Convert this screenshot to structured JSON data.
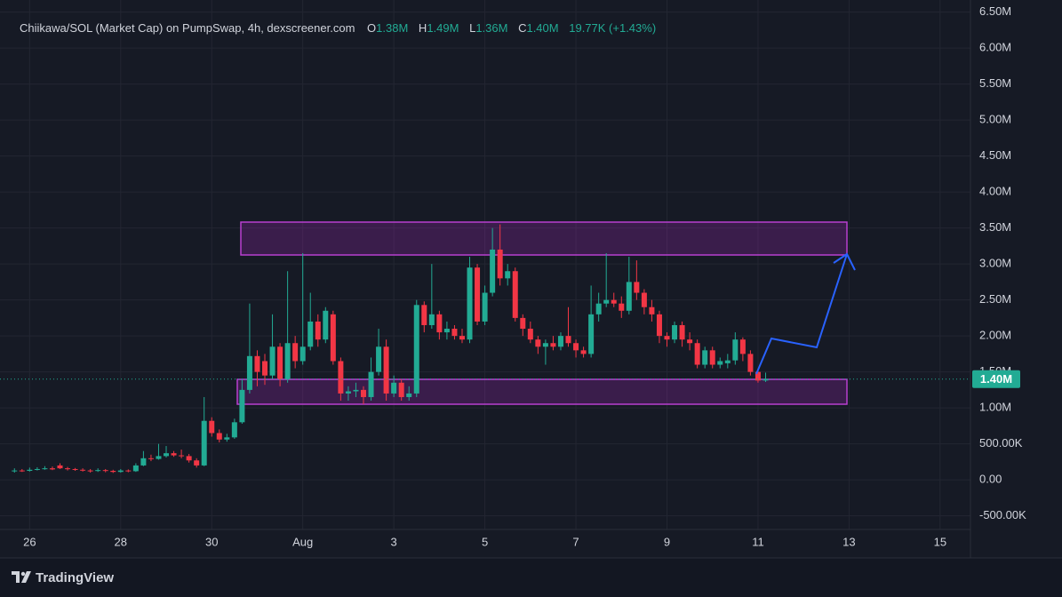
{
  "chart_data": {
    "type": "candlestick",
    "title": "Chiikawa/SOL (Market Cap) on PumpSwap, 4h, dexscreener.com",
    "ohlc_legend": [
      {
        "key": "O",
        "value": "1.38M"
      },
      {
        "key": "H",
        "value": "1.49M"
      },
      {
        "key": "L",
        "value": "1.36M"
      },
      {
        "key": "C",
        "value": "1.40M"
      }
    ],
    "change": "19.77K (+1.43%)",
    "up_color": "#22ab94",
    "down_color": "#f23645",
    "grid": true,
    "x": [
      -8,
      -4,
      0,
      4,
      8,
      12,
      16,
      20,
      24,
      28,
      32,
      36,
      40,
      44,
      48,
      52,
      56,
      60,
      64,
      68,
      72,
      76,
      80,
      84,
      88,
      92,
      96,
      100,
      104,
      108,
      112,
      116,
      120,
      124,
      128,
      132,
      136,
      140,
      144,
      148,
      152,
      156,
      160,
      164,
      168,
      172,
      176,
      180,
      184,
      188,
      192,
      196,
      200,
      204,
      208,
      212,
      216,
      220,
      224,
      228,
      232,
      236,
      240,
      244,
      248,
      252,
      256,
      260,
      264,
      268,
      272,
      276,
      280,
      284,
      288,
      292,
      296,
      300,
      304,
      308,
      312,
      316,
      320,
      324,
      328,
      332,
      336,
      340,
      344,
      348,
      352,
      356,
      360,
      364,
      368,
      372,
      376,
      380,
      384,
      388
    ],
    "open": [
      120000,
      130000,
      125000,
      140000,
      150000,
      160000,
      200000,
      160000,
      150000,
      140000,
      130000,
      125000,
      135000,
      125000,
      110000,
      130000,
      120000,
      200000,
      300000,
      290000,
      330000,
      370000,
      340000,
      330000,
      270000,
      200000,
      820000,
      650000,
      560000,
      590000,
      800000,
      1250000,
      1720000,
      1650000,
      1450000,
      1850000,
      1400000,
      1900000,
      1650000,
      1850000,
      2200000,
      1950000,
      2300000,
      1650000,
      1200000,
      1230000,
      1250000,
      1150000,
      1500000,
      1850000,
      1200000,
      1350000,
      1150000,
      1200000,
      2430000,
      2150000,
      2300000,
      2050000,
      2100000,
      2000000,
      1950000,
      2950000,
      2200000,
      2600000,
      3200000,
      2800000,
      2900000,
      2250000,
      2100000,
      1950000,
      1850000,
      1900000,
      1850000,
      2000000,
      1900000,
      1800000,
      1750000,
      2300000,
      2450000,
      2500000,
      2450000,
      2350000,
      2750000,
      2600000,
      2400000,
      2300000,
      2000000,
      1950000,
      2150000,
      1950000,
      1900000,
      1600000,
      1800000,
      1600000,
      1620000,
      1660000,
      1950000,
      1750000,
      1500000,
      1380000
    ],
    "high": [
      160000,
      150000,
      170000,
      175000,
      190000,
      185000,
      230000,
      180000,
      165000,
      160000,
      150000,
      160000,
      150000,
      140000,
      150000,
      145000,
      230000,
      400000,
      350000,
      500000,
      470000,
      400000,
      420000,
      360000,
      300000,
      1150000,
      870000,
      700000,
      640000,
      850000,
      1400000,
      2450000,
      1800000,
      1750000,
      2300000,
      1900000,
      2900000,
      2000000,
      3150000,
      2600000,
      2300000,
      2400000,
      2350000,
      1700000,
      1300000,
      1350000,
      1300000,
      1700000,
      2100000,
      1950000,
      1450000,
      1400000,
      1300000,
      2500000,
      2480000,
      3000000,
      2350000,
      2200000,
      2150000,
      2100000,
      3100000,
      3000000,
      2700000,
      3500000,
      3550000,
      3000000,
      2950000,
      2300000,
      2200000,
      2000000,
      1950000,
      2000000,
      2050000,
      2400000,
      1950000,
      1850000,
      2700000,
      2600000,
      3150000,
      2600000,
      2550000,
      3100000,
      3050000,
      2650000,
      2500000,
      2350000,
      2050000,
      2200000,
      2200000,
      2050000,
      1950000,
      1850000,
      1850000,
      1700000,
      1750000,
      2050000,
      1980000,
      1800000,
      1550000,
      1490000
    ],
    "low": [
      100000,
      110000,
      115000,
      130000,
      140000,
      135000,
      150000,
      130000,
      125000,
      115000,
      100000,
      110000,
      105000,
      95000,
      100000,
      105000,
      110000,
      190000,
      260000,
      280000,
      310000,
      320000,
      300000,
      240000,
      170000,
      190000,
      600000,
      520000,
      530000,
      570000,
      780000,
      1200000,
      1300000,
      1320000,
      1400000,
      1300000,
      1350000,
      1550000,
      1600000,
      1800000,
      1850000,
      1900000,
      1600000,
      1100000,
      1100000,
      1150000,
      1050000,
      1100000,
      1450000,
      1100000,
      1150000,
      1100000,
      1100000,
      1150000,
      2050000,
      2100000,
      1950000,
      1950000,
      1950000,
      1900000,
      1900000,
      2150000,
      2150000,
      2550000,
      2700000,
      2700000,
      2200000,
      2000000,
      1900000,
      1750000,
      1600000,
      1800000,
      1800000,
      1850000,
      1700000,
      1700000,
      1700000,
      2200000,
      2400000,
      2400000,
      2250000,
      2300000,
      2500000,
      2300000,
      2200000,
      1900000,
      1850000,
      1900000,
      1850000,
      1800000,
      1550000,
      1550000,
      1550000,
      1550000,
      1550000,
      1600000,
      1650000,
      1450000,
      1350000,
      1360000
    ],
    "close": [
      130000,
      125000,
      140000,
      150000,
      160000,
      145000,
      160000,
      150000,
      140000,
      130000,
      120000,
      135000,
      125000,
      110000,
      130000,
      120000,
      200000,
      300000,
      290000,
      330000,
      370000,
      340000,
      330000,
      270000,
      200000,
      820000,
      650000,
      560000,
      590000,
      800000,
      1250000,
      1720000,
      1500000,
      1450000,
      1850000,
      1400000,
      1900000,
      1650000,
      1850000,
      2200000,
      1950000,
      2350000,
      1650000,
      1200000,
      1230000,
      1250000,
      1150000,
      1500000,
      1850000,
      1200000,
      1350000,
      1150000,
      1200000,
      2430000,
      2150000,
      2300000,
      2050000,
      2100000,
      2000000,
      1950000,
      2950000,
      2200000,
      2600000,
      3200000,
      2800000,
      2900000,
      2250000,
      2100000,
      1950000,
      1850000,
      1900000,
      1850000,
      2000000,
      1900000,
      1800000,
      1750000,
      2300000,
      2450000,
      2500000,
      2450000,
      2350000,
      2750000,
      2600000,
      2400000,
      2300000,
      2000000,
      1950000,
      2150000,
      1950000,
      1900000,
      1600000,
      1800000,
      1600000,
      1650000,
      1660000,
      1950000,
      1750000,
      1500000,
      1380000,
      1400000
    ],
    "xlim": [
      -10,
      496
    ],
    "xticks": [
      {
        "value": 0,
        "label": "26"
      },
      {
        "value": 48,
        "label": "28"
      },
      {
        "value": 96,
        "label": "30"
      },
      {
        "value": 144,
        "label": "Aug"
      },
      {
        "value": 192,
        "label": "3"
      },
      {
        "value": 240,
        "label": "5"
      },
      {
        "value": 288,
        "label": "7"
      },
      {
        "value": 336,
        "label": "9"
      },
      {
        "value": 384,
        "label": "11"
      },
      {
        "value": 432,
        "label": "13"
      },
      {
        "value": 480,
        "label": "15"
      }
    ],
    "ylim": [
      -690000,
      6570000
    ],
    "yticks": [
      {
        "value": 6500000,
        "label": "6.50M"
      },
      {
        "value": 6000000,
        "label": "6.00M"
      },
      {
        "value": 5500000,
        "label": "5.50M"
      },
      {
        "value": 5000000,
        "label": "5.00M"
      },
      {
        "value": 4500000,
        "label": "4.50M"
      },
      {
        "value": 4000000,
        "label": "4.00M"
      },
      {
        "value": 3500000,
        "label": "3.50M"
      },
      {
        "value": 3000000,
        "label": "3.00M"
      },
      {
        "value": 2500000,
        "label": "2.50M"
      },
      {
        "value": 2000000,
        "label": "2.00M"
      },
      {
        "value": 1500000,
        "label": "1.50M"
      },
      {
        "value": 1000000,
        "label": "1.00M"
      },
      {
        "value": 500000,
        "label": "500.00K"
      },
      {
        "value": 0,
        "label": "0.00"
      },
      {
        "value": -500000,
        "label": "-500.00K"
      }
    ],
    "last_price": {
      "value": 1400000,
      "label": "1.40M"
    },
    "brand": "TradingView"
  }
}
